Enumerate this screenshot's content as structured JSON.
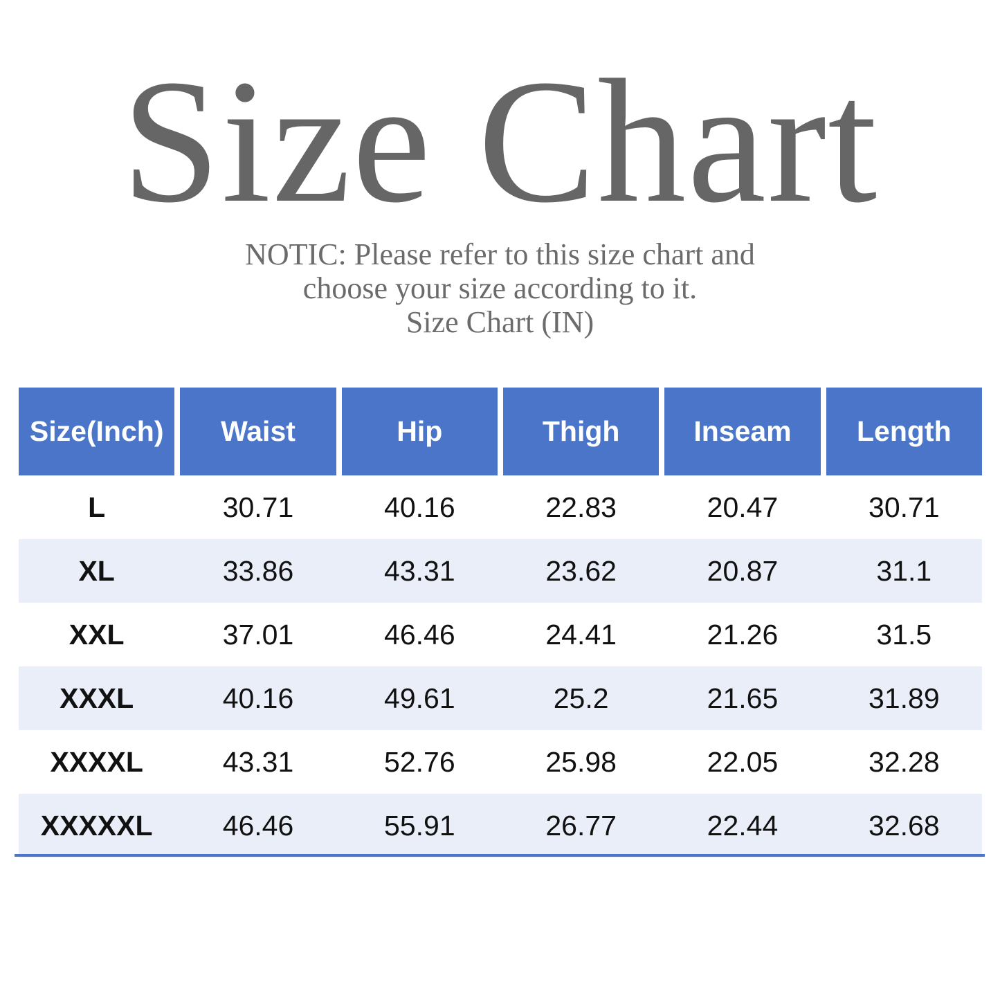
{
  "title": "Size Chart",
  "notice": {
    "line1": "NOTIC: Please refer to this size chart and",
    "line2": "choose your size according to it.",
    "line3": "Size Chart (IN)"
  },
  "colors": {
    "header": "#4a75c9",
    "alt_row": "#eaeef8",
    "title": "#666666"
  },
  "table": {
    "headers": [
      "Size(Inch)",
      "Waist",
      "Hip",
      "Thigh",
      "Inseam",
      "Length"
    ],
    "rows": [
      [
        "L",
        "30.71",
        "40.16",
        "22.83",
        "20.47",
        "30.71"
      ],
      [
        "XL",
        "33.86",
        "43.31",
        "23.62",
        "20.87",
        "31.1"
      ],
      [
        "XXL",
        "37.01",
        "46.46",
        "24.41",
        "21.26",
        "31.5"
      ],
      [
        "XXXL",
        "40.16",
        "49.61",
        "25.2",
        "21.65",
        "31.89"
      ],
      [
        "XXXXL",
        "43.31",
        "52.76",
        "25.98",
        "22.05",
        "32.28"
      ],
      [
        "XXXXXL",
        "46.46",
        "55.91",
        "26.77",
        "22.44",
        "32.68"
      ]
    ]
  }
}
